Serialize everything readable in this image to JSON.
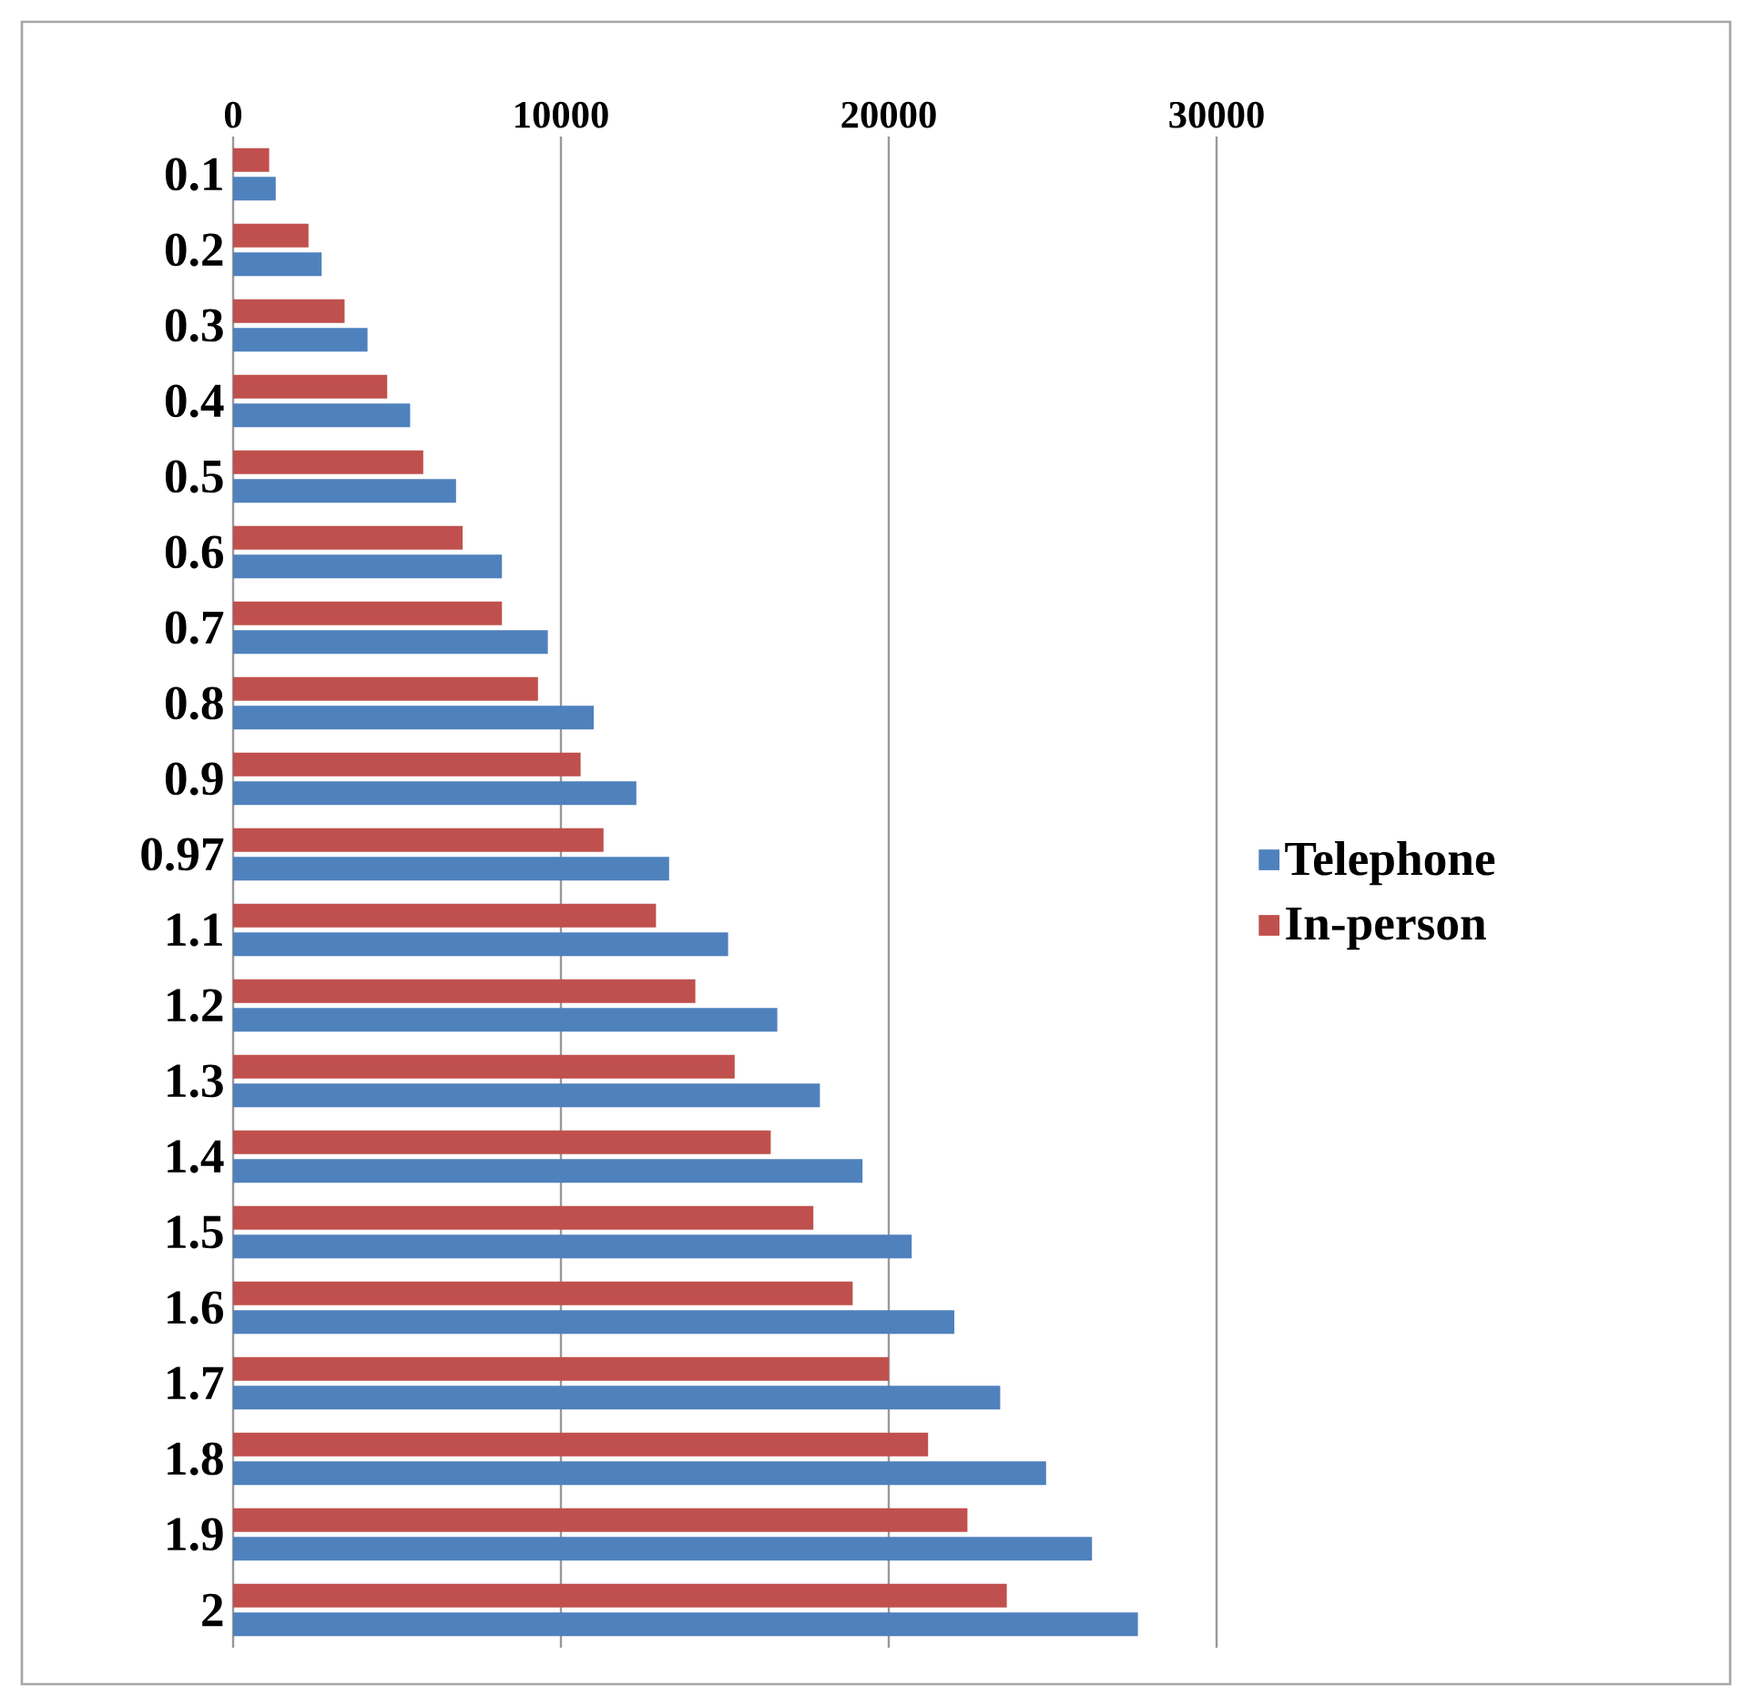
{
  "chart_data": {
    "type": "bar",
    "orientation": "horizontal",
    "categories": [
      "0.1",
      "0.2",
      "0.3",
      "0.4",
      "0.5",
      "0.6",
      "0.7",
      "0.8",
      "0.9",
      "0.97",
      "1.1",
      "1.2",
      "1.3",
      "1.4",
      "1.5",
      "1.6",
      "1.7",
      "1.8",
      "1.9",
      "2"
    ],
    "series": [
      {
        "name": "Telephone",
        "color": "#4f81bd",
        "values": [
          1300,
          2700,
          4100,
          5400,
          6800,
          8200,
          9600,
          11000,
          12300,
          13300,
          15100,
          16600,
          17900,
          19200,
          20700,
          22000,
          23400,
          24800,
          26200,
          27600
        ]
      },
      {
        "name": "In-person",
        "color": "#c0504d",
        "values": [
          1100,
          2300,
          3400,
          4700,
          5800,
          7000,
          8200,
          9300,
          10600,
          11300,
          12900,
          14100,
          15300,
          16400,
          17700,
          18900,
          20000,
          21200,
          22400,
          23600
        ]
      }
    ],
    "xlim": [
      0,
      30000
    ],
    "xticks": [
      0,
      10000,
      20000,
      30000
    ],
    "grid": "x",
    "legend": "right"
  }
}
